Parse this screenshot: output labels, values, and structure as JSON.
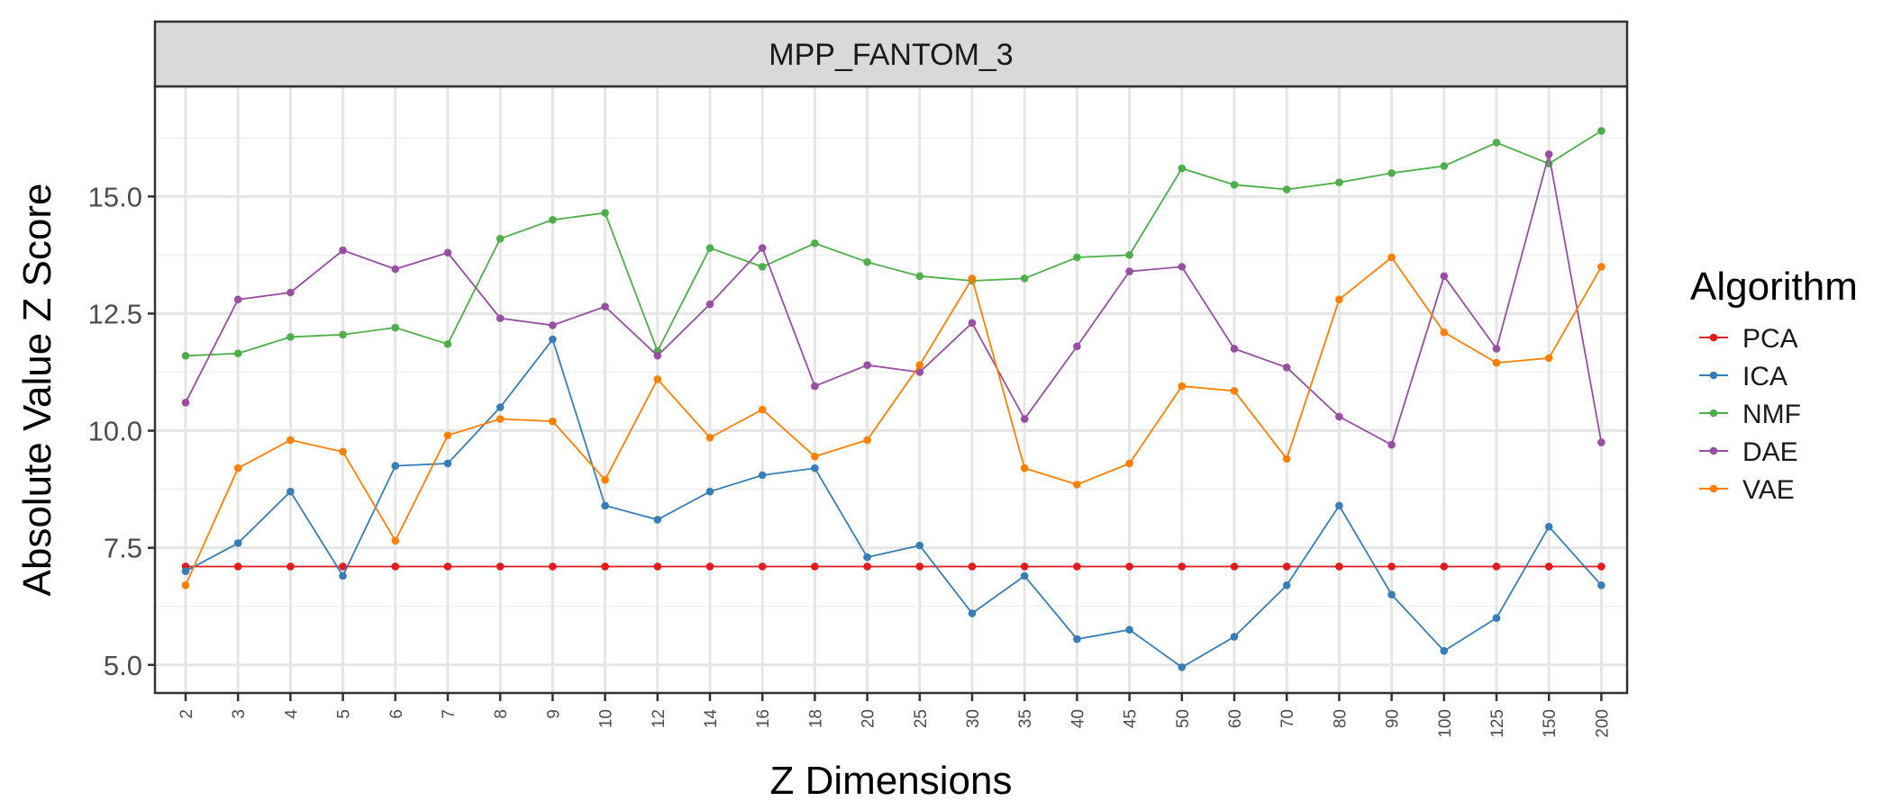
{
  "chart_data": {
    "type": "line",
    "facet_title": "MPP_FANTOM_3",
    "xlabel": "Z Dimensions",
    "ylabel": "Absolute Value Z Score",
    "categories": [
      "2",
      "3",
      "4",
      "5",
      "6",
      "7",
      "8",
      "9",
      "10",
      "12",
      "14",
      "16",
      "18",
      "20",
      "25",
      "30",
      "35",
      "40",
      "45",
      "50",
      "60",
      "70",
      "80",
      "90",
      "100",
      "125",
      "150",
      "200"
    ],
    "ylim": [
      4.4,
      17.35
    ],
    "yticks": [
      5.0,
      7.5,
      10.0,
      12.5,
      15.0
    ],
    "ytick_labels": [
      "5.0",
      "7.5",
      "10.0",
      "12.5",
      "15.0"
    ],
    "grid": true,
    "legend": {
      "title": "Algorithm",
      "position": "right"
    },
    "series": [
      {
        "name": "PCA",
        "color": "#E41A1C",
        "values": [
          7.1,
          7.1,
          7.1,
          7.1,
          7.1,
          7.1,
          7.1,
          7.1,
          7.1,
          7.1,
          7.1,
          7.1,
          7.1,
          7.1,
          7.1,
          7.1,
          7.1,
          7.1,
          7.1,
          7.1,
          7.1,
          7.1,
          7.1,
          7.1,
          7.1,
          7.1,
          7.1,
          7.1
        ]
      },
      {
        "name": "ICA",
        "color": "#377EB8",
        "values": [
          7.0,
          7.6,
          8.7,
          6.9,
          9.25,
          9.3,
          10.5,
          11.95,
          8.4,
          8.1,
          8.7,
          9.05,
          9.2,
          7.3,
          7.55,
          6.1,
          6.9,
          5.55,
          5.75,
          4.95,
          5.6,
          6.7,
          8.4,
          6.5,
          5.3,
          6.0,
          7.95,
          6.7
        ]
      },
      {
        "name": "NMF",
        "color": "#4DAF4A",
        "values": [
          11.6,
          11.65,
          12.0,
          12.05,
          12.2,
          11.85,
          14.1,
          14.5,
          14.65,
          11.7,
          13.9,
          13.5,
          14.0,
          13.6,
          13.3,
          13.2,
          13.25,
          13.7,
          13.75,
          15.6,
          15.25,
          15.15,
          15.3,
          15.5,
          15.65,
          16.15,
          15.7,
          16.4
        ]
      },
      {
        "name": "DAE",
        "color": "#984EA3",
        "values": [
          10.6,
          12.8,
          12.95,
          13.85,
          13.45,
          13.8,
          12.4,
          12.25,
          12.65,
          11.6,
          12.7,
          13.9,
          10.95,
          11.4,
          11.25,
          12.3,
          10.25,
          11.8,
          13.4,
          13.5,
          11.75,
          11.35,
          10.3,
          9.7,
          13.3,
          11.75,
          15.9,
          9.75
        ]
      },
      {
        "name": "VAE",
        "color": "#FF7F00",
        "values": [
          6.7,
          9.2,
          9.8,
          9.55,
          7.65,
          9.9,
          10.25,
          10.2,
          8.95,
          11.1,
          9.85,
          10.45,
          9.45,
          9.8,
          11.4,
          13.25,
          9.2,
          8.85,
          9.3,
          10.95,
          10.85,
          9.4,
          12.8,
          13.7,
          12.1,
          11.45,
          11.55,
          13.5
        ]
      }
    ]
  }
}
